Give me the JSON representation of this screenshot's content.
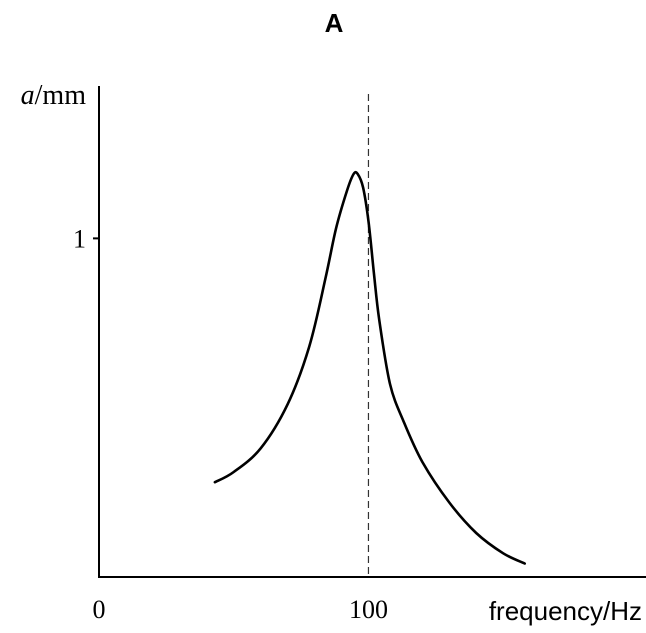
{
  "chart_data": {
    "type": "line",
    "title": "A",
    "ylabel_var": "a",
    "ylabel_unit": "/mm",
    "xlabel": "frequency/Hz",
    "x_ticks": [
      {
        "value": 0,
        "label": "0"
      },
      {
        "value": 100,
        "label": "100"
      }
    ],
    "y_ticks": [
      {
        "value": 1,
        "label": "1"
      }
    ],
    "xlim": [
      0,
      203
    ],
    "ylim": [
      0,
      1.45
    ],
    "reference_line": {
      "x": 100,
      "style": "dashed"
    },
    "grid": false,
    "series": [
      {
        "x": [
          43,
          50,
          60,
          70,
          78,
          84,
          88,
          92,
          94.5,
          96,
          98,
          100,
          102,
          104,
          108,
          113,
          120,
          130,
          140,
          150,
          158
        ],
        "y": [
          0.28,
          0.31,
          0.38,
          0.51,
          0.68,
          0.88,
          1.03,
          1.14,
          1.19,
          1.19,
          1.15,
          1.05,
          0.9,
          0.76,
          0.57,
          0.46,
          0.34,
          0.22,
          0.13,
          0.07,
          0.04
        ]
      }
    ]
  }
}
